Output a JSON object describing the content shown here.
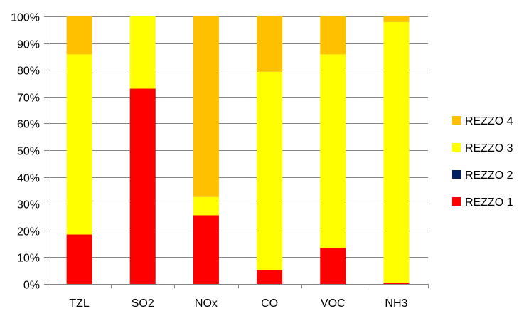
{
  "chart_data": {
    "type": "bar",
    "stacked": true,
    "percent": true,
    "categories": [
      "TZL",
      "SO2",
      "NOx",
      "CO",
      "VOC",
      "NH3"
    ],
    "series": [
      {
        "name": "REZZO 1",
        "color": "#ff0000",
        "values": [
          18.5,
          73,
          25.7,
          5.2,
          13.5,
          0.5
        ]
      },
      {
        "name": "REZZO 2",
        "color": "#002060",
        "values": [
          0,
          0,
          0,
          0,
          0,
          0
        ]
      },
      {
        "name": "REZZO 3",
        "color": "#ffff00",
        "values": [
          67.3,
          27,
          6.8,
          74.1,
          72.3,
          97.4
        ]
      },
      {
        "name": "REZZO 4",
        "color": "#ffc000",
        "values": [
          14.2,
          0,
          67.5,
          20.7,
          14.2,
          2.1
        ]
      }
    ],
    "yticks": [
      "0%",
      "10%",
      "20%",
      "30%",
      "40%",
      "50%",
      "60%",
      "70%",
      "80%",
      "90%",
      "100%"
    ],
    "ylim": [
      0,
      100
    ],
    "grid": true,
    "legend_position": "right",
    "legend_order": [
      "REZZO 4",
      "REZZO 3",
      "REZZO 2",
      "REZZO 1"
    ]
  }
}
